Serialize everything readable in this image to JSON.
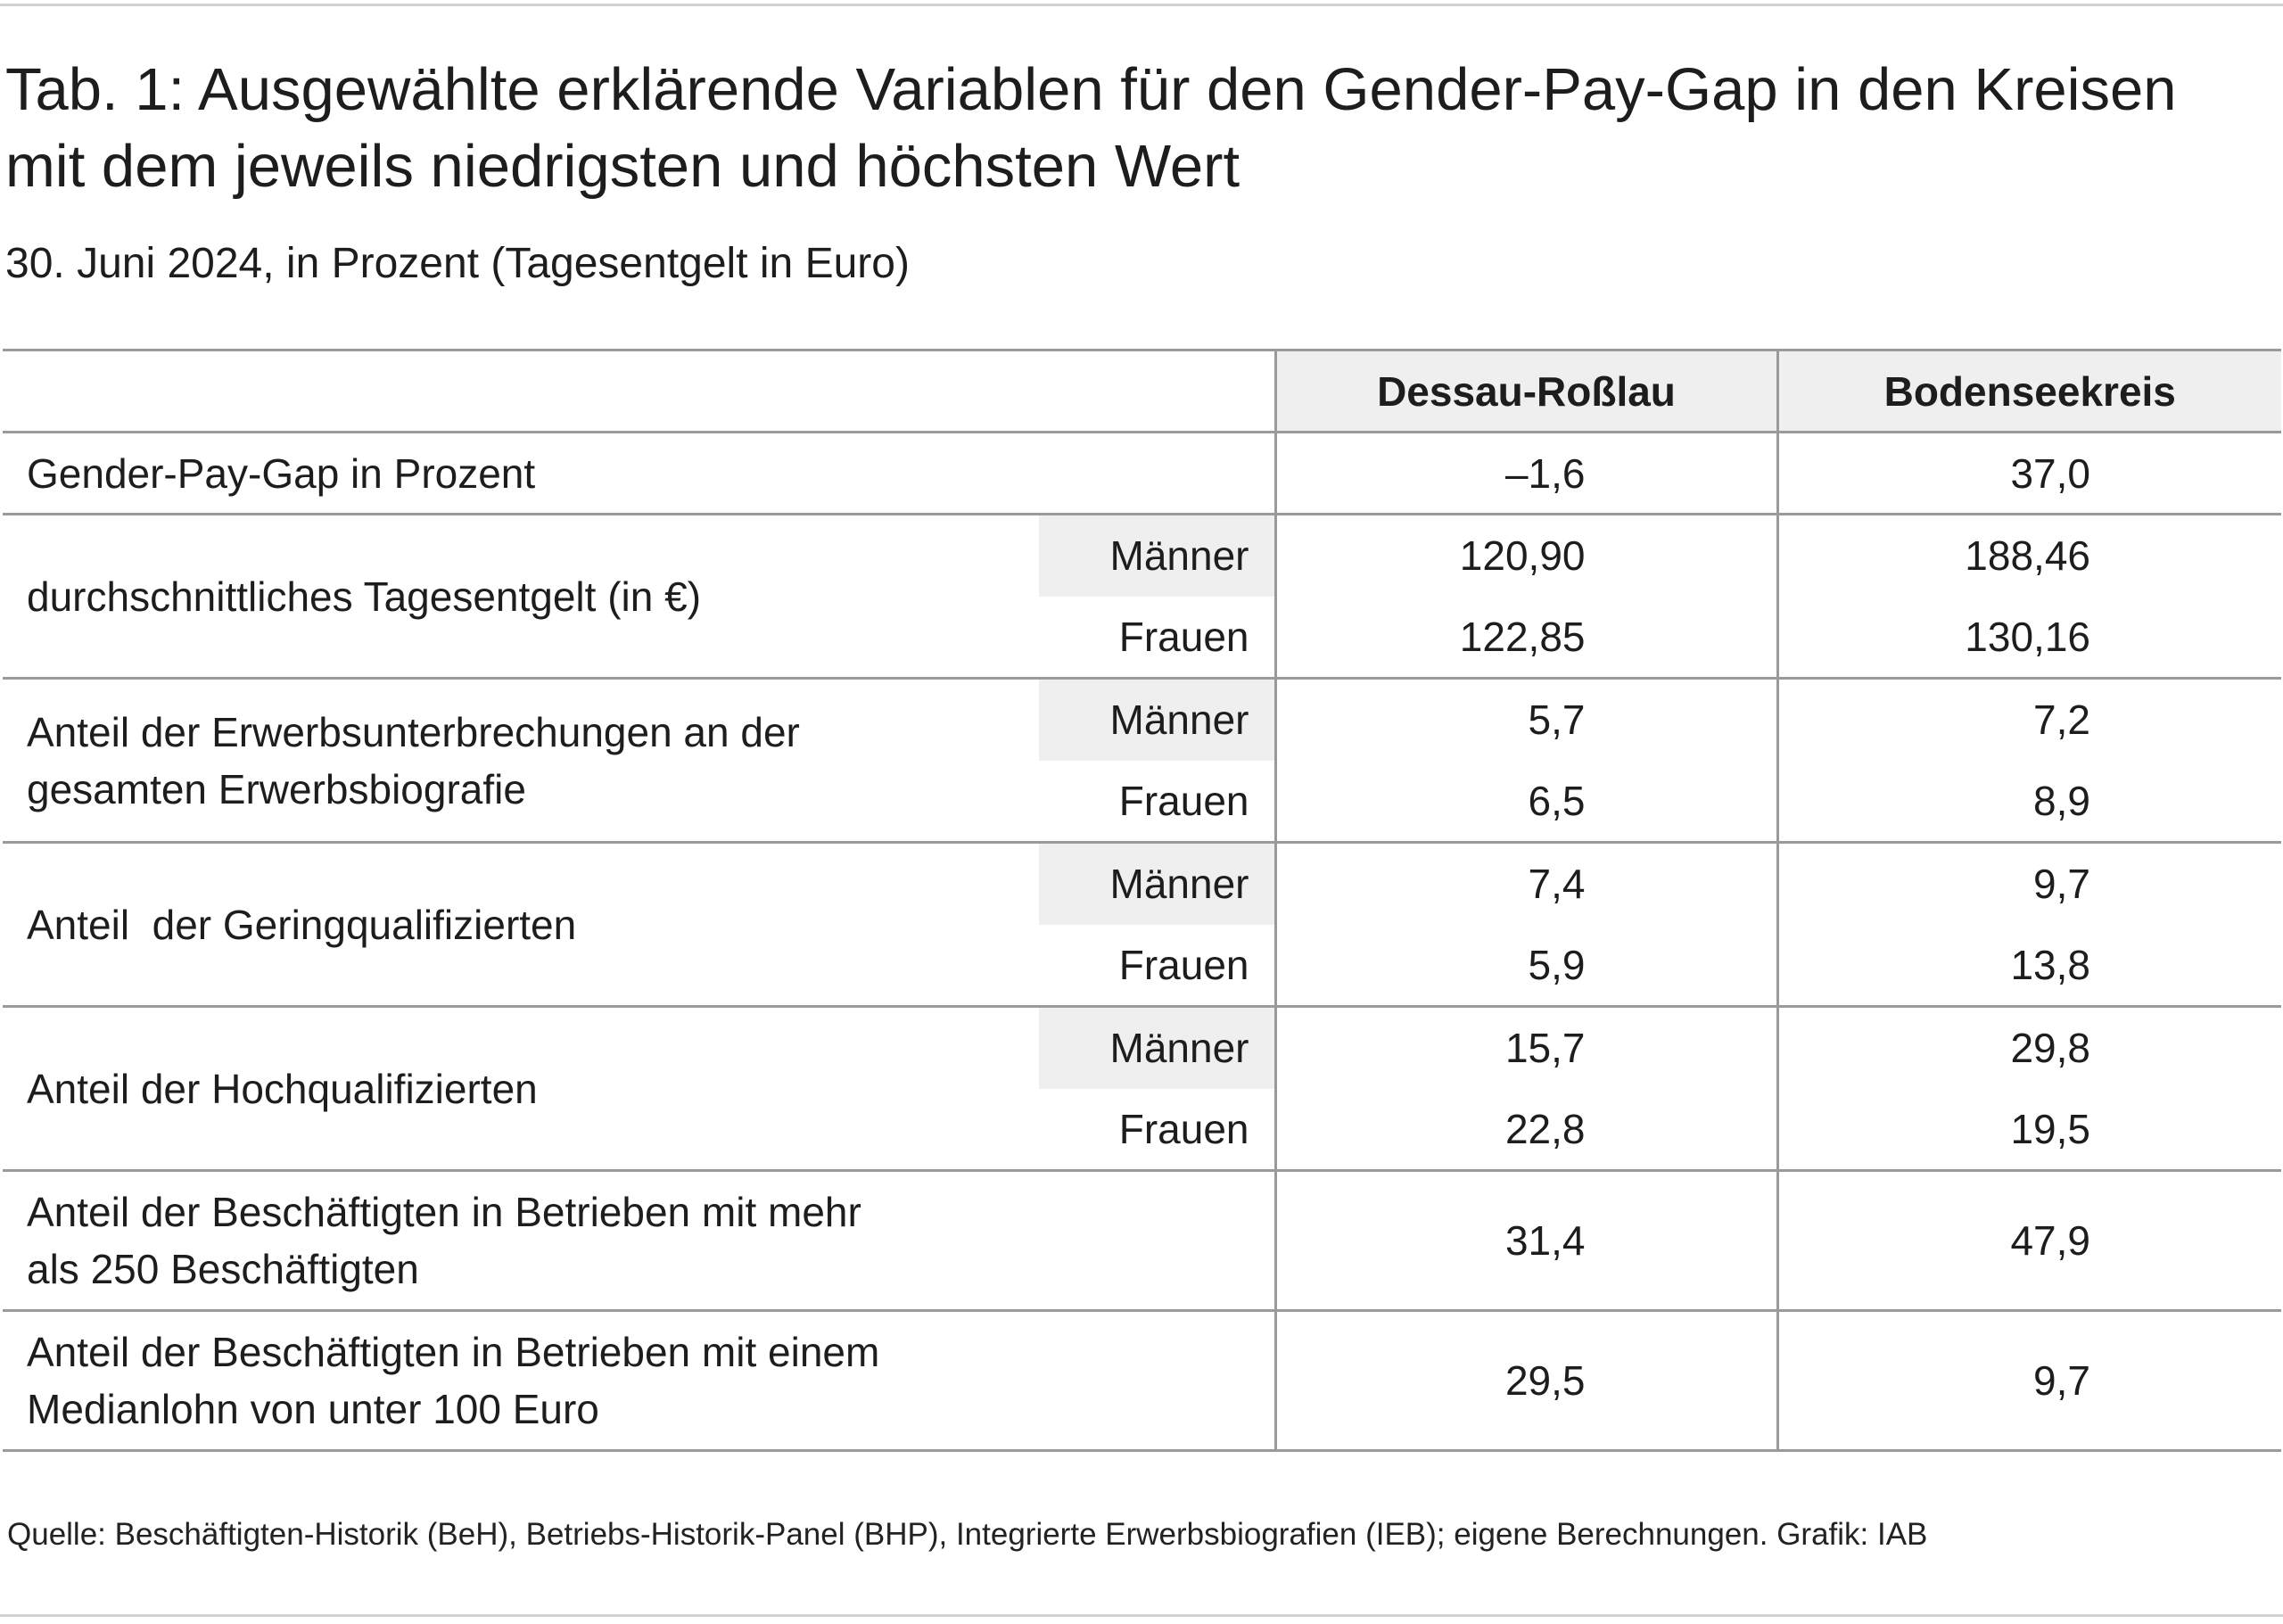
{
  "title": "Tab. 1: Ausgewählte erklärende Variablen für den Gender-Pay-Gap in den Kreisen mit dem jeweils niedrigsten und höchsten Wert",
  "subtitle": "30. Juni 2024, in Prozent (Tagesentgelt in Euro)",
  "table": {
    "columns": [
      "Dessau-Roßlau",
      "Bodenseekreis"
    ],
    "rows": [
      {
        "label": "Gender-Pay-Gap in Prozent",
        "values": [
          "–1,6",
          "37,0"
        ]
      },
      {
        "label": "durchschnittliches Tagesentgelt (in €)",
        "sub": [
          {
            "label": "Männer",
            "values": [
              "120,90",
              "188,46"
            ]
          },
          {
            "label": "Frauen",
            "values": [
              "122,85",
              "130,16"
            ]
          }
        ]
      },
      {
        "label": "Anteil der Erwerbsunterbrechungen an der gesamten Erwerbsbiografie",
        "sub": [
          {
            "label": "Männer",
            "values": [
              "5,7",
              "7,2"
            ]
          },
          {
            "label": "Frauen",
            "values": [
              "6,5",
              "8,9"
            ]
          }
        ]
      },
      {
        "label": "Anteil  der Geringqualifizierten",
        "sub": [
          {
            "label": "Männer",
            "values": [
              "7,4",
              "9,7"
            ]
          },
          {
            "label": "Frauen",
            "values": [
              "5,9",
              "13,8"
            ]
          }
        ]
      },
      {
        "label": "Anteil der Hochqualifizierten",
        "sub": [
          {
            "label": "Männer",
            "values": [
              "15,7",
              "29,8"
            ]
          },
          {
            "label": "Frauen",
            "values": [
              "22,8",
              "19,5"
            ]
          }
        ]
      },
      {
        "label": "Anteil der Beschäftigten in Betrieben mit mehr als 250 Beschäftigten",
        "values": [
          "31,4",
          "47,9"
        ]
      },
      {
        "label": "Anteil der Beschäftigten in Betrieben mit einem Medianlohn von unter 100 Euro",
        "values": [
          "29,5",
          "9,7"
        ]
      }
    ]
  },
  "source": "Quelle: Beschäftigten-Historik (BeH), Betriebs-Historik-Panel (BHP), Integrierte Erwerbsbiografien (IEB); eigene Berechnungen. Grafik: IAB"
}
